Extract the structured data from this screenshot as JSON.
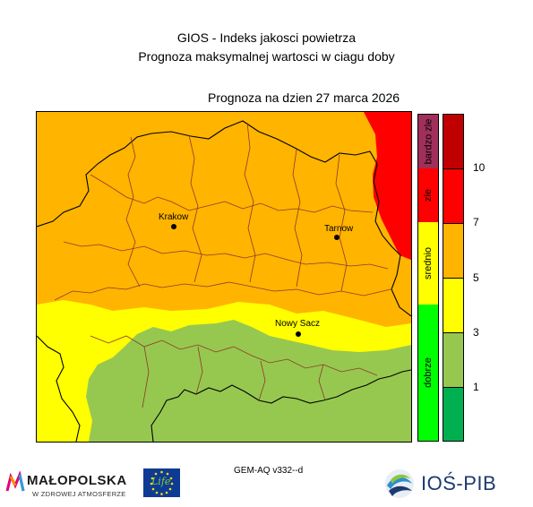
{
  "header": {
    "line1": "GIOS - Indeks jakosci powietrza",
    "line2": "Prognoza maksymalnej wartosci w ciagu doby",
    "forecast_date": "Prognoza na dzien  27 marca 2026"
  },
  "map": {
    "colors": {
      "red": "#ff0000",
      "orange": "#ffb400",
      "yellow": "#ffff00",
      "lightgreen": "#96c850",
      "border": "#000000",
      "district": "#8b3a2a"
    },
    "cities": [
      {
        "name": "Krakow"
      },
      {
        "name": "Tarnow"
      },
      {
        "name": "Nowy Sacz"
      }
    ]
  },
  "legend": {
    "categories": [
      {
        "label": "bardzo zle",
        "color": "#a0305a"
      },
      {
        "label": "zle",
        "color": "#ff0000"
      },
      {
        "label": "srednio",
        "color": "#ffff00"
      },
      {
        "label": "dobrze",
        "color": "#00ff00"
      }
    ],
    "scale": [
      {
        "color": "#c00000"
      },
      {
        "color": "#ff0000"
      },
      {
        "color": "#ffb400"
      },
      {
        "color": "#ffff00"
      },
      {
        "color": "#96c850"
      },
      {
        "color": "#00b050"
      }
    ],
    "ticks": [
      "10",
      "7",
      "5",
      "3",
      "1"
    ]
  },
  "footer": {
    "model": "GEM-AQ v332--d",
    "malopolska_name": "MAŁOPOLSKA",
    "malopolska_tagline": "W ZDROWEJ ATMOSFERZE",
    "eu_mark": "Life",
    "ios_name": "IOŚ-PIB"
  }
}
